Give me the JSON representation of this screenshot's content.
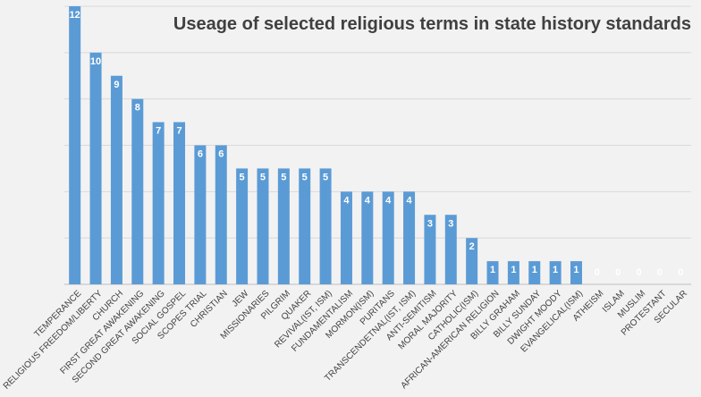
{
  "chart_data": {
    "type": "bar",
    "title": "Useage of selected religious terms in state history standards",
    "xlabel": "",
    "ylabel": "",
    "ylim": [
      0,
      12
    ],
    "grid": true,
    "legend": "none",
    "bar_color": "#5b9bd5",
    "label_color": "#ffffff",
    "categories": [
      "TEMPERANCE",
      "RELIGIOUS FREEDOM/LIBERTY",
      "CHURCH",
      "FIRST GREAT AWAKENING",
      "SECOND GREAT AWAKENING",
      "SOCIAL GOSPEL",
      "SCOPES TRIAL",
      "CHRISTIAN",
      "JEW",
      "MISSIONARIES",
      "PILGRIM",
      "QUAKER",
      "REVIVAL(IST, ISM)",
      "FUNDAMENTALISM",
      "MORMON(ISM)",
      "PURITANS",
      "TRANSCENDETNAL(IST, ISM)",
      "ANTI-SEMITISM",
      "MORAL MAJORITY",
      "CATHOLIC(ISM)",
      "AFRICAN-AMERICAN RELIGION",
      "BILLY GRAHAM",
      "BILLY SUNDAY",
      "DWIGHT MOODY",
      "EVANGELICAL(ISM)",
      "ATHEISM",
      "ISLAM",
      "MUSLIM",
      "PROTESTANT",
      "SECULAR"
    ],
    "values": [
      12,
      10,
      9,
      8,
      7,
      7,
      6,
      6,
      5,
      5,
      5,
      5,
      5,
      4,
      4,
      4,
      4,
      3,
      3,
      2,
      1,
      1,
      1,
      1,
      1,
      0,
      0,
      0,
      0,
      0
    ]
  }
}
